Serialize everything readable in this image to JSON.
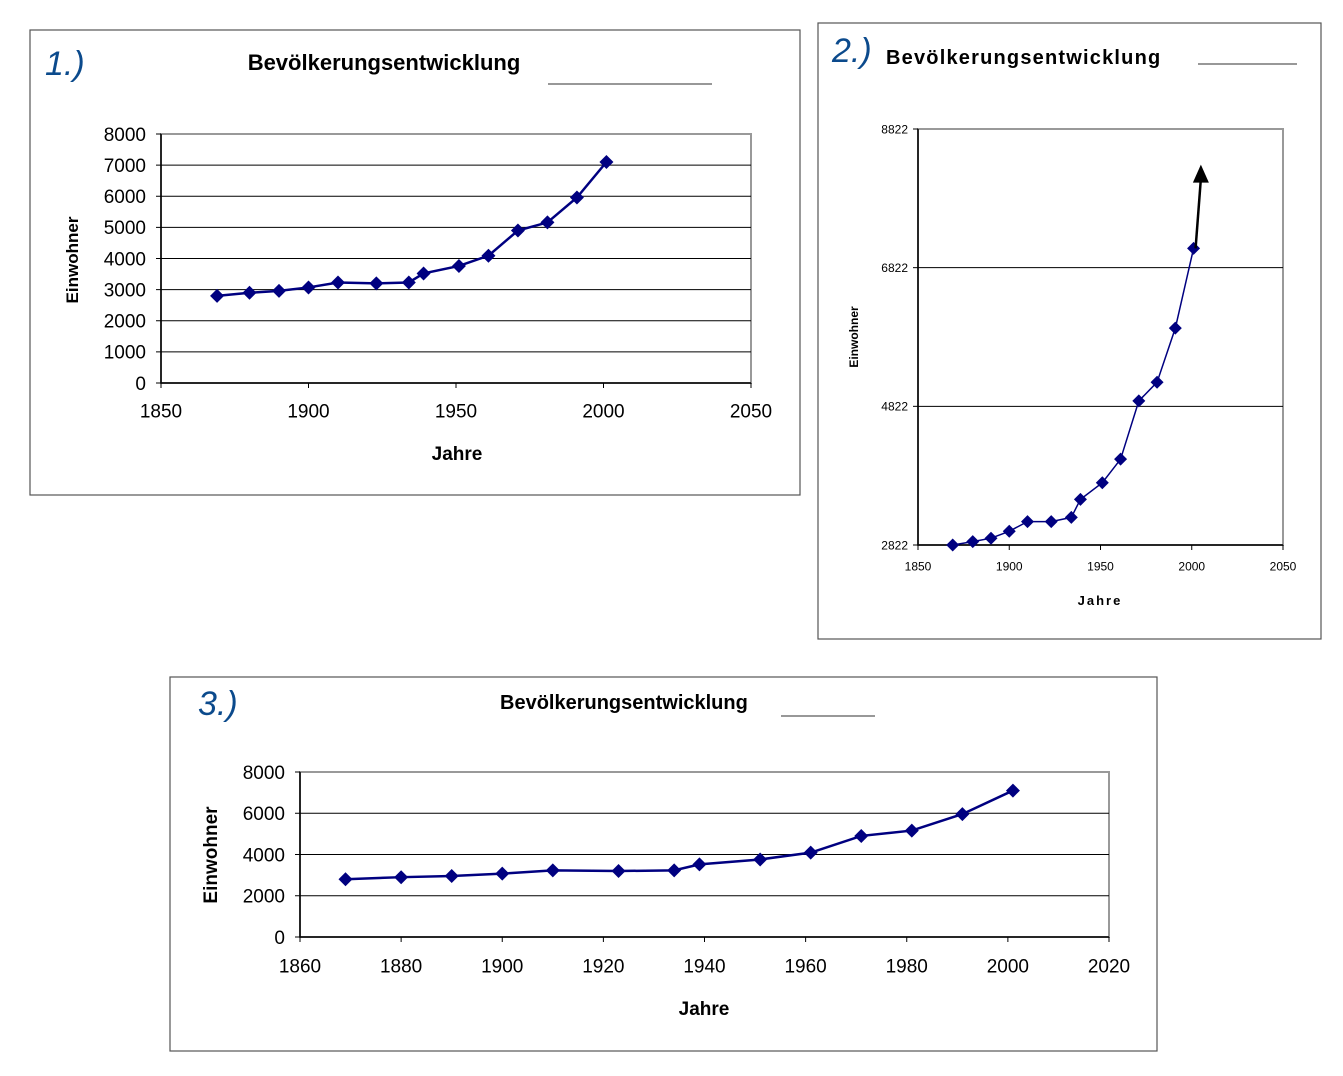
{
  "chart_data": [
    {
      "type": "line",
      "annotation": "1.)",
      "title": "Bevölkerungsentwicklung",
      "xlabel": "Jahre",
      "ylabel": "Einwohner",
      "xlim": [
        1850,
        2050
      ],
      "xticks": [
        1850,
        1900,
        1950,
        2000,
        2050
      ],
      "ylim": [
        0,
        8000
      ],
      "yticks": [
        0,
        1000,
        2000,
        3000,
        4000,
        5000,
        6000,
        7000,
        8000
      ],
      "grid": true,
      "x": [
        1869,
        1880,
        1890,
        1900,
        1910,
        1923,
        1934,
        1939,
        1951,
        1961,
        1971,
        1981,
        1991,
        2001
      ],
      "y": [
        2800,
        2900,
        2960,
        3070,
        3230,
        3200,
        3230,
        3520,
        3760,
        4090,
        4900,
        5160,
        5960,
        7100
      ],
      "color": "#000080"
    },
    {
      "type": "line",
      "annotation": "2.)",
      "title": "Bevölkerungsentwicklung",
      "xlabel": "Jahre",
      "ylabel": "Einwohner",
      "xlim": [
        1850,
        2050
      ],
      "xticks": [
        1850,
        1900,
        1950,
        2000,
        2050
      ],
      "ylim": [
        2822,
        8822
      ],
      "yticks": [
        2822,
        4822,
        6822,
        8822
      ],
      "grid": true,
      "x": [
        1869,
        1880,
        1890,
        1900,
        1910,
        1923,
        1934,
        1939,
        1951,
        1961,
        1971,
        1981,
        1991,
        2001
      ],
      "y": [
        2822,
        2870,
        2920,
        3020,
        3160,
        3160,
        3220,
        3480,
        3720,
        4060,
        4900,
        5170,
        5950,
        7100
      ],
      "arrow_to": [
        2005,
        8250
      ],
      "color": "#000080"
    },
    {
      "type": "line",
      "annotation": "3.)",
      "title": "Bevölkerungsentwicklung",
      "xlabel": "Jahre",
      "ylabel": "Einwohner",
      "xlim": [
        1860,
        2020
      ],
      "xticks": [
        1860,
        1880,
        1900,
        1920,
        1940,
        1960,
        1980,
        2000,
        2020
      ],
      "ylim": [
        0,
        8000
      ],
      "yticks": [
        0,
        2000,
        4000,
        6000,
        8000
      ],
      "grid": true,
      "x": [
        1869,
        1880,
        1890,
        1900,
        1910,
        1923,
        1934,
        1939,
        1951,
        1961,
        1971,
        1981,
        1991,
        2001
      ],
      "y": [
        2800,
        2900,
        2960,
        3070,
        3230,
        3200,
        3230,
        3520,
        3760,
        4090,
        4900,
        5160,
        5960,
        7100
      ],
      "color": "#000080"
    }
  ]
}
